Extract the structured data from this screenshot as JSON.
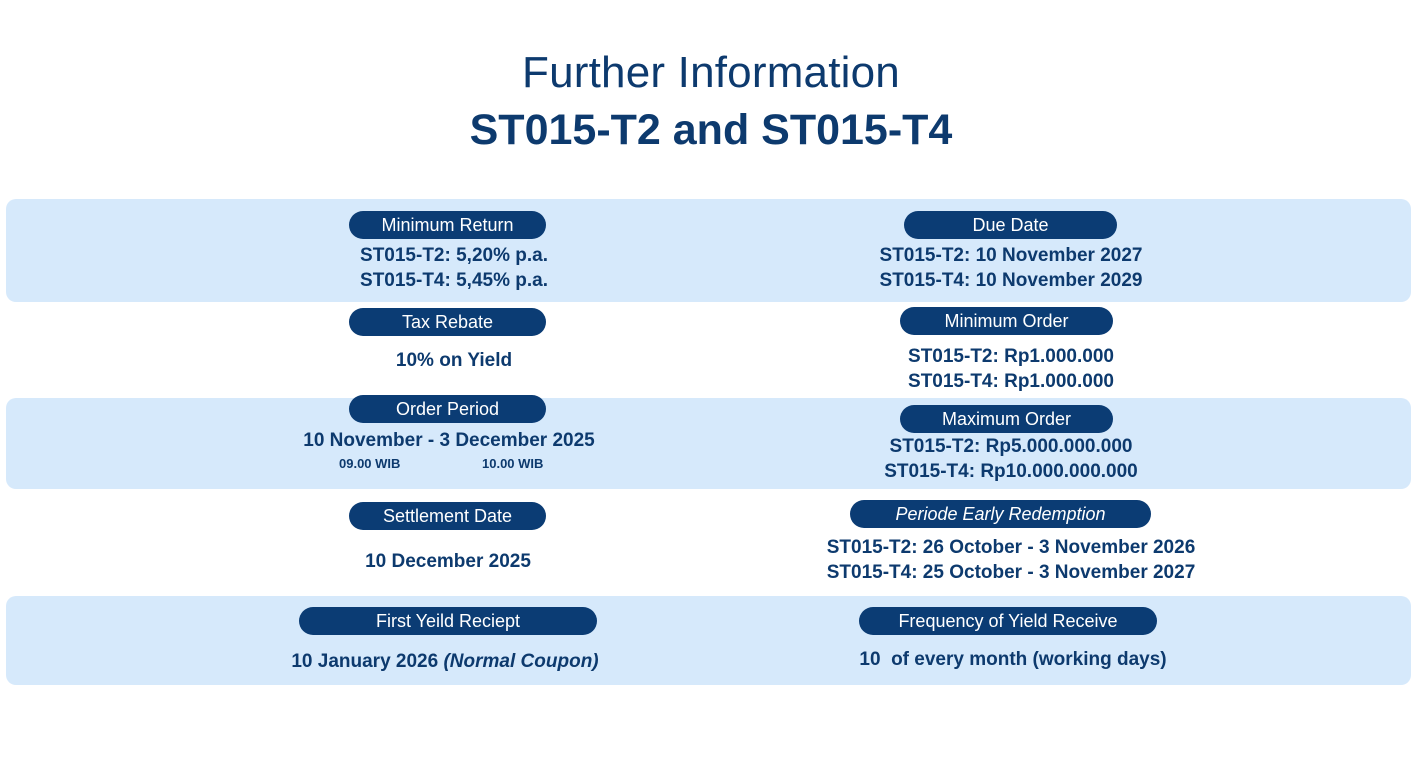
{
  "header": {
    "title_line1": "Further Information",
    "title_line2": "ST015-T2 and ST015-T4"
  },
  "colors": {
    "navy": "#0b3c74",
    "band": "#d6e9fb",
    "text": "#0d3a6e"
  },
  "items": {
    "minimum_return": {
      "label": "Minimum Return",
      "line1": "ST015-T2: 5,20% p.a.",
      "line2": "ST015-T4: 5,45% p.a."
    },
    "due_date": {
      "label": "Due Date",
      "line1": "ST015-T2: 10 November 2027",
      "line2": "ST015-T4: 10 November 2029"
    },
    "tax_rebate": {
      "label": "Tax Rebate",
      "line1": "10% on Yield"
    },
    "minimum_order": {
      "label": "Minimum Order",
      "line1": "ST015-T2: Rp1.000.000",
      "line2": "ST015-T4: Rp1.000.000"
    },
    "order_period": {
      "label": "Order Period",
      "line1": "10 November - 3 December 2025",
      "time_start": "09.00 WIB",
      "time_end": "10.00 WIB"
    },
    "maximum_order": {
      "label": "Maximum Order",
      "line1": "ST015-T2: Rp5.000.000.000",
      "line2": "ST015-T4: Rp10.000.000.000"
    },
    "settlement_date": {
      "label": "Settlement Date",
      "line1": "10 December 2025"
    },
    "early_redemption": {
      "label": "Periode Early Redemption",
      "line1": "ST015-T2: 26 October - 3 November 2026",
      "line2": "ST015-T4: 25 October - 3 November 2027"
    },
    "first_yield": {
      "label": "First Yeild Reciept",
      "date": "10 January 2026",
      "note": "(Normal Coupon)"
    },
    "yield_frequency": {
      "label": "Frequency of Yield Receive",
      "line1": "10  of every month (working days)"
    }
  }
}
